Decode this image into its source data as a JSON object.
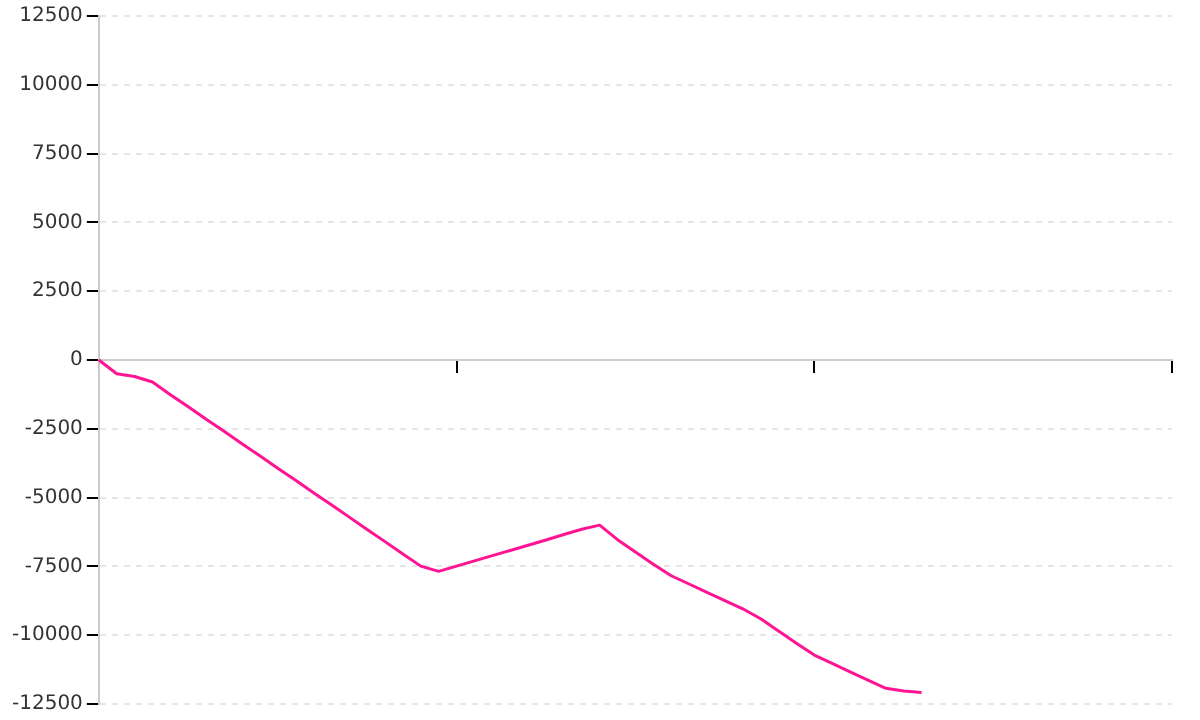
{
  "chart_data": {
    "type": "line",
    "categories": [
      null,
      null,
      null,
      null,
      null,
      null,
      null,
      null,
      null,
      null,
      null,
      null,
      null,
      null,
      null,
      null,
      null,
      null,
      null,
      null,
      null,
      null,
      null,
      null,
      null,
      null,
      null,
      null,
      null,
      null,
      null,
      null,
      null,
      null,
      null,
      null,
      null,
      null,
      null,
      null,
      null,
      null,
      null,
      null,
      null,
      null,
      null,
      null,
      null,
      null,
      null,
      null,
      null,
      null,
      null,
      null,
      null,
      null,
      null,
      null,
      null
    ],
    "series": [
      {
        "color": "#ff1493",
        "values": [
          0,
          -500,
          -600,
          -800,
          -1260,
          -1700,
          -2150,
          -2590,
          -3040,
          -3480,
          -3930,
          -4370,
          -4820,
          -5260,
          -5710,
          -6160,
          -6600,
          -7050,
          -7490,
          -7680,
          -7490,
          -7300,
          -7110,
          -6920,
          -6730,
          -6540,
          -6340,
          -6150,
          -6000,
          -6530,
          -6980,
          -7420,
          -7840,
          -8140,
          -8440,
          -8740,
          -9040,
          -9400,
          -9850,
          -10290,
          -10720,
          -11020,
          -11330,
          -11630,
          -11930,
          -12030,
          -12080,
          null,
          null,
          null,
          null,
          null,
          null,
          null,
          null,
          null,
          null,
          null,
          null,
          null,
          null
        ]
      }
    ],
    "ylim": [
      -12500,
      12500
    ],
    "yticks": [
      -12500,
      -10000,
      -7500,
      -5000,
      -2500,
      0,
      2500,
      5000,
      7500,
      10000,
      12500
    ],
    "tick_labels": "y",
    "grid": "y",
    "legend": false,
    "marker": "none",
    "line_style": "solid"
  }
}
